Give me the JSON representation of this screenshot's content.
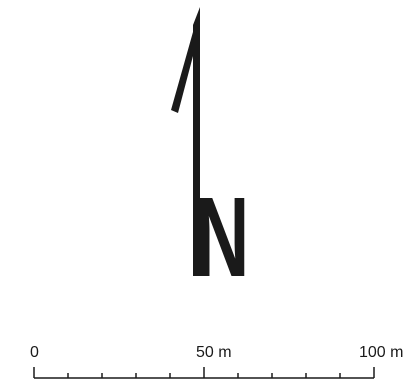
{
  "north_arrow": {
    "letter": "N",
    "color": "#1a1a1a"
  },
  "scale_bar": {
    "unit": "m",
    "total": 100,
    "minor_divisions": 10,
    "labels": [
      "0",
      "50 m",
      "100 m"
    ],
    "color": "#1a1a1a"
  }
}
